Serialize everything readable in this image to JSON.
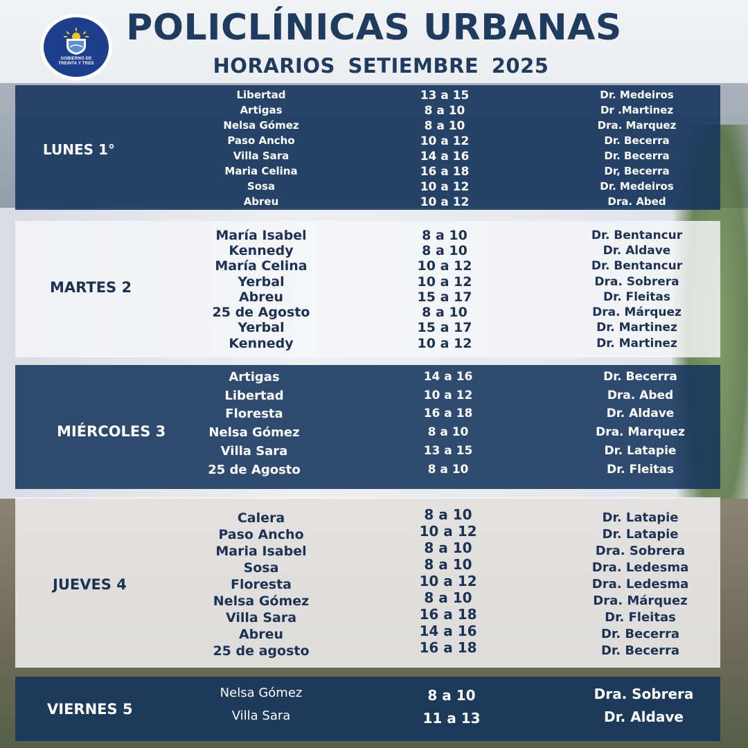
{
  "header": {
    "title": "POLICLÍNICAS URBANAS",
    "subtitle": "HORARIOS  SETIEMBRE 2025",
    "logo_text": [
      "GOBIERNO DE",
      "TREINTA Y TRES"
    ]
  },
  "colors": {
    "navy": "#15345c",
    "title_blue": "#1f3c5e",
    "logo_blue": "#1d3f8c"
  },
  "days": [
    {
      "label": "LUNES 1°",
      "rows": [
        {
          "place": "Libertad",
          "hours": "13 a 15",
          "doctor": "Dr.  Medeiros"
        },
        {
          "place": "Artigas",
          "hours": "8 a 10",
          "doctor": "Dr .Martinez"
        },
        {
          "place": "Nelsa Gómez",
          "hours": "8 a 10",
          "doctor": "Dra. Marquez"
        },
        {
          "place": "Paso Ancho",
          "hours": "10 a 12",
          "doctor": "Dr. Becerra"
        },
        {
          "place": "Villa Sara",
          "hours": "14 a 16",
          "doctor": "Dr.  Becerra"
        },
        {
          "place": "Maria Celina",
          "hours": "16 a 18",
          "doctor": "Dr, Becerra"
        },
        {
          "place": "Sosa",
          "hours": "10 a 12",
          "doctor": "Dr. Medeiros"
        },
        {
          "place": "Abreu",
          "hours": "10 a 12",
          "doctor": "Dra. Abed"
        }
      ]
    },
    {
      "label": "MARTES 2",
      "rows": [
        {
          "place": "María Isabel",
          "hours": "8 a 10",
          "doctor": "Dr. Bentancur"
        },
        {
          "place": "Kennedy",
          "hours": "8 a 10",
          "doctor": "Dr. Aldave"
        },
        {
          "place": "María Celina",
          "hours": "10 a 12",
          "doctor": "Dr. Bentancur"
        },
        {
          "place": "Yerbal",
          "hours": "10 a 12",
          "doctor": "Dra. Sobrera"
        },
        {
          "place": "Abreu",
          "hours": "15 a 17",
          "doctor": "Dr. Fleitas"
        },
        {
          "place": "25 de Agosto",
          "hours": "8 a 10",
          "doctor": "Dra. Márquez"
        },
        {
          "place": "Yerbal",
          "hours": "15 a 17",
          "doctor": "Dr. Martinez"
        },
        {
          "place": "Kennedy",
          "hours": "10 a 12",
          "doctor": "Dr. Martinez"
        }
      ]
    },
    {
      "label": "MIÉRCOLES 3",
      "rows": [
        {
          "place": "Artigas",
          "hours": "14 a 16",
          "doctor": "Dr. Becerra"
        },
        {
          "place": "Libertad",
          "hours": "10 a 12",
          "doctor": "Dra. Abed"
        },
        {
          "place": "Floresta",
          "hours": "16 a 18",
          "doctor": "Dr. Aldave"
        },
        {
          "place": "Nelsa Gómez",
          "hours": "8 a 10",
          "doctor": "Dra.  Marquez"
        },
        {
          "place": "Villa Sara",
          "hours": "13 a 15",
          "doctor": "Dr. Latapie"
        },
        {
          "place": "25 de Agosto",
          "hours": "8 a 10",
          "doctor": "Dr. Fleitas"
        }
      ]
    },
    {
      "label": "JUEVES 4",
      "rows": [
        {
          "place": "Calera",
          "hours": "8  a  10",
          "doctor": "Dr.  Latapie"
        },
        {
          "place": "Paso Ancho",
          "hours": "10  a  12",
          "doctor": "Dr. Latapie"
        },
        {
          "place": "Maria Isabel",
          "hours": "8  a  10",
          "doctor": "Dra. Sobrera"
        },
        {
          "place": "Sosa",
          "hours": "8  a  10",
          "doctor": "Dra. Ledesma"
        },
        {
          "place": "Floresta",
          "hours": "10  a  12",
          "doctor": "Dra. Ledesma"
        },
        {
          "place": "Nelsa Gómez",
          "hours": "8  a  10",
          "doctor": "Dra. Márquez"
        },
        {
          "place": "Villa Sara",
          "hours": "16  a  18",
          "doctor": "Dr. Fleitas"
        },
        {
          "place": "Abreu",
          "hours": "14  a  16",
          "doctor": "Dr.  Becerra"
        },
        {
          "place": "25 de agosto",
          "hours": "16  a  18",
          "doctor": "Dr. Becerra"
        }
      ]
    },
    {
      "label": "VIERNES  5",
      "rows": [
        {
          "place": "Nelsa Gómez",
          "hours": "8 a 10",
          "doctor": "Dra. Sobrera"
        },
        {
          "place": "Villa Sara",
          "hours": "11 a 13",
          "doctor": "Dr. Aldave"
        }
      ]
    }
  ]
}
